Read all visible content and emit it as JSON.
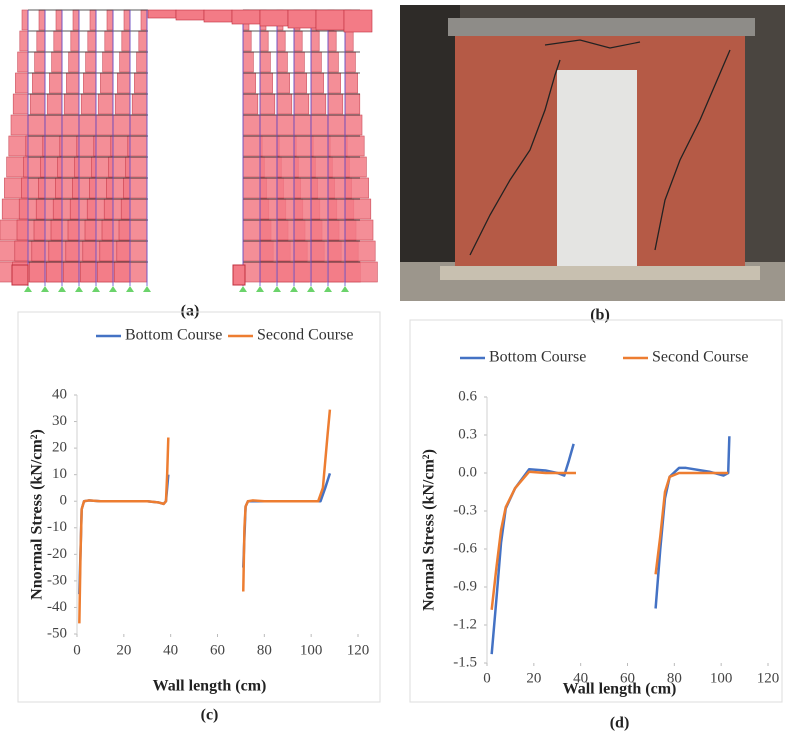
{
  "panels": [
    {
      "caption": "(a)"
    },
    {
      "caption": "(b)"
    }
  ],
  "chart_data": [
    {
      "type": "line",
      "caption": "(c)",
      "xlabel": "Wall length  (cm)",
      "ylabel": "Nnormal Stress  (kN/cm²)",
      "xlim": [
        0,
        120
      ],
      "xticks": [
        0,
        20,
        40,
        60,
        80,
        100,
        120
      ],
      "ylim": [
        -50,
        40
      ],
      "yticks": [
        -50,
        -40,
        -30,
        -20,
        -10,
        0,
        10,
        20,
        30,
        40
      ],
      "legend": "top",
      "series": [
        {
          "name": "Bottom Course",
          "color": "#4472c4",
          "x": [
            1,
            2,
            3,
            5,
            10,
            30,
            35,
            37,
            38,
            39,
            null,
            71,
            72,
            73,
            80,
            104,
            106,
            108
          ],
          "values": [
            -35,
            -3,
            0,
            0.3,
            0,
            0,
            -0.5,
            -1,
            0,
            10,
            null,
            -25,
            -2,
            0,
            0,
            0,
            5,
            10.5
          ]
        },
        {
          "name": "Second Course",
          "color": "#ed7d31",
          "x": [
            1,
            1.5,
            2,
            3,
            5,
            10,
            30,
            35,
            37,
            38,
            38.5,
            39,
            null,
            71,
            71.5,
            72,
            73,
            75,
            80,
            103,
            105,
            107,
            108
          ],
          "values": [
            -46,
            -20,
            -3,
            0,
            0.3,
            0,
            0,
            -0.5,
            -1,
            0,
            10,
            24,
            null,
            -34,
            -10,
            -2,
            0,
            0.3,
            0,
            0,
            5,
            25,
            34.5
          ]
        }
      ]
    },
    {
      "type": "line",
      "caption": "(d)",
      "xlabel": "Wall length (cm)",
      "ylabel": "Normal Stress  (kN/cm²)",
      "xlim": [
        0,
        120
      ],
      "xticks": [
        0,
        20,
        40,
        60,
        80,
        100,
        120
      ],
      "ylim": [
        -1.5,
        0.6
      ],
      "yticks": [
        -1.5,
        -1.2,
        -0.9,
        -0.6,
        -0.3,
        {
          "value": 0,
          "label": "0.0"
        },
        0.3,
        0.6
      ],
      "legend": "top",
      "series": [
        {
          "name": "Bottom Course",
          "color": "#4472c4",
          "x": [
            2,
            4,
            6,
            8,
            12,
            18,
            25,
            30,
            33,
            35,
            37,
            null,
            72,
            74,
            76,
            78,
            82,
            85,
            95,
            101,
            103,
            103.5
          ],
          "values": [
            -1.43,
            -1.0,
            -0.55,
            -0.28,
            -0.12,
            0.03,
            0.02,
            0,
            -0.02,
            0.1,
            0.23,
            null,
            -1.07,
            -0.6,
            -0.2,
            -0.03,
            0.04,
            0.04,
            0.01,
            -0.02,
            0,
            0.29
          ]
        },
        {
          "name": "Second Course",
          "color": "#ed7d31",
          "x": [
            2,
            4,
            6,
            8,
            12,
            18,
            25,
            30,
            38,
            null,
            72,
            74,
            76,
            78,
            82,
            95,
            101,
            103
          ],
          "values": [
            -1.08,
            -0.75,
            -0.45,
            -0.27,
            -0.12,
            0.01,
            0,
            0,
            0,
            null,
            -0.8,
            -0.5,
            -0.15,
            -0.03,
            0,
            0,
            0,
            0
          ]
        }
      ]
    }
  ]
}
